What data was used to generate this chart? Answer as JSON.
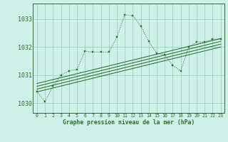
{
  "title": "Graphe pression niveau de la mer (hPa)",
  "bg_color": "#cdf0e8",
  "grid_color": "#9dcfbf",
  "line_color": "#2d6e2d",
  "xlim": [
    -0.5,
    23.5
  ],
  "ylim": [
    1029.65,
    1033.55
  ],
  "yticks": [
    1030,
    1031,
    1032,
    1033
  ],
  "xtick_labels": [
    "0",
    "1",
    "2",
    "3",
    "4",
    "5",
    "6",
    "7",
    "8",
    "9",
    "10",
    "11",
    "12",
    "13",
    "14",
    "15",
    "16",
    "17",
    "18",
    "19",
    "20",
    "21",
    "22",
    "23"
  ],
  "main_series_x": [
    0,
    1,
    2,
    3,
    4,
    5,
    6,
    7,
    8,
    9,
    10,
    11,
    12,
    13,
    14,
    15,
    16,
    17,
    18,
    19,
    20,
    21,
    22,
    23
  ],
  "main_series_y": [
    1030.4,
    1030.05,
    1030.6,
    1031.0,
    1031.15,
    1031.2,
    1031.85,
    1031.82,
    1031.82,
    1031.82,
    1032.35,
    1033.15,
    1033.12,
    1032.75,
    1032.2,
    1031.78,
    1031.72,
    1031.35,
    1031.15,
    1032.0,
    1032.18,
    1032.18,
    1032.28,
    1032.28
  ],
  "linear_series": [
    [
      0,
      1030.4,
      23,
      1032.0
    ],
    [
      0,
      1030.5,
      23,
      1032.1
    ],
    [
      0,
      1030.6,
      23,
      1032.2
    ],
    [
      0,
      1030.7,
      23,
      1032.3
    ]
  ]
}
